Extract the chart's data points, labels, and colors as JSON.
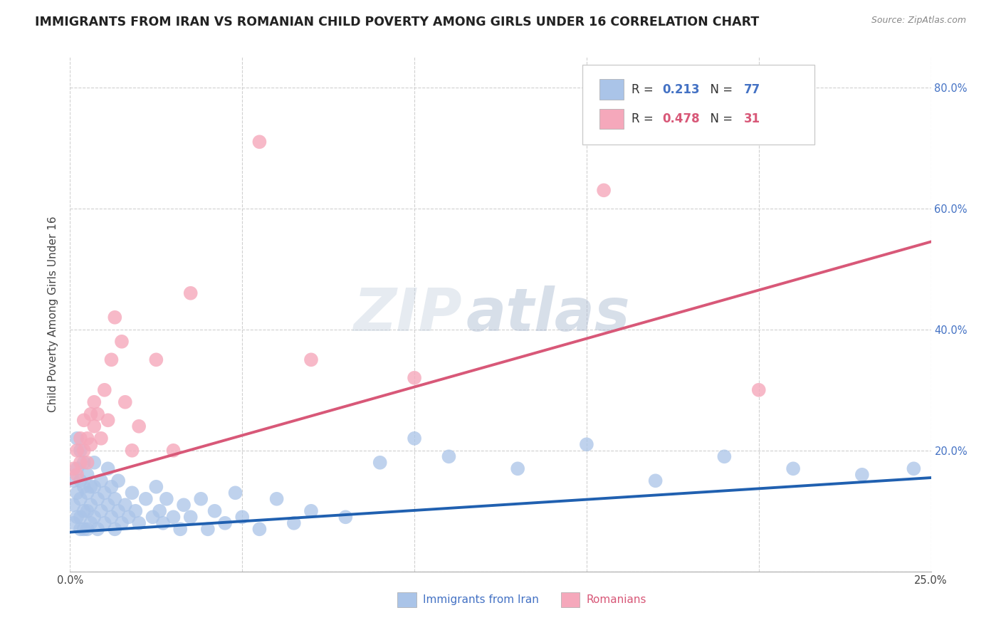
{
  "title": "IMMIGRANTS FROM IRAN VS ROMANIAN CHILD POVERTY AMONG GIRLS UNDER 16 CORRELATION CHART",
  "source": "Source: ZipAtlas.com",
  "xlabel_blue": "Immigrants from Iran",
  "xlabel_pink": "Romanians",
  "ylabel": "Child Poverty Among Girls Under 16",
  "xlim": [
    0.0,
    0.25
  ],
  "ylim": [
    0.0,
    0.85
  ],
  "legend_blue_r": "0.213",
  "legend_blue_n": "77",
  "legend_pink_r": "0.478",
  "legend_pink_n": "31",
  "blue_color": "#aac4e8",
  "pink_color": "#f5a8bb",
  "blue_line_color": "#2060b0",
  "pink_line_color": "#d85878",
  "watermark_zip": "ZIP",
  "watermark_atlas": "atlas",
  "blue_scatter_x": [
    0.001,
    0.001,
    0.001,
    0.002,
    0.002,
    0.002,
    0.002,
    0.003,
    0.003,
    0.003,
    0.003,
    0.003,
    0.004,
    0.004,
    0.004,
    0.004,
    0.005,
    0.005,
    0.005,
    0.005,
    0.006,
    0.006,
    0.006,
    0.007,
    0.007,
    0.007,
    0.008,
    0.008,
    0.009,
    0.009,
    0.01,
    0.01,
    0.011,
    0.011,
    0.012,
    0.012,
    0.013,
    0.013,
    0.014,
    0.014,
    0.015,
    0.016,
    0.017,
    0.018,
    0.019,
    0.02,
    0.022,
    0.024,
    0.025,
    0.026,
    0.027,
    0.028,
    0.03,
    0.032,
    0.033,
    0.035,
    0.038,
    0.04,
    0.042,
    0.045,
    0.048,
    0.05,
    0.055,
    0.06,
    0.065,
    0.07,
    0.08,
    0.09,
    0.1,
    0.11,
    0.13,
    0.15,
    0.17,
    0.19,
    0.21,
    0.23,
    0.245
  ],
  "blue_scatter_y": [
    0.15,
    0.11,
    0.08,
    0.22,
    0.17,
    0.13,
    0.09,
    0.2,
    0.15,
    0.12,
    0.09,
    0.07,
    0.18,
    0.14,
    0.1,
    0.07,
    0.16,
    0.13,
    0.1,
    0.07,
    0.14,
    0.11,
    0.08,
    0.18,
    0.14,
    0.09,
    0.12,
    0.07,
    0.15,
    0.1,
    0.13,
    0.08,
    0.17,
    0.11,
    0.14,
    0.09,
    0.12,
    0.07,
    0.15,
    0.1,
    0.08,
    0.11,
    0.09,
    0.13,
    0.1,
    0.08,
    0.12,
    0.09,
    0.14,
    0.1,
    0.08,
    0.12,
    0.09,
    0.07,
    0.11,
    0.09,
    0.12,
    0.07,
    0.1,
    0.08,
    0.13,
    0.09,
    0.07,
    0.12,
    0.08,
    0.1,
    0.09,
    0.18,
    0.22,
    0.19,
    0.17,
    0.21,
    0.15,
    0.19,
    0.17,
    0.16,
    0.17
  ],
  "pink_scatter_x": [
    0.001,
    0.002,
    0.002,
    0.003,
    0.003,
    0.004,
    0.004,
    0.005,
    0.005,
    0.006,
    0.006,
    0.007,
    0.007,
    0.008,
    0.009,
    0.01,
    0.011,
    0.012,
    0.013,
    0.015,
    0.016,
    0.018,
    0.02,
    0.025,
    0.03,
    0.035,
    0.055,
    0.07,
    0.1,
    0.155,
    0.2
  ],
  "pink_scatter_y": [
    0.17,
    0.2,
    0.16,
    0.22,
    0.18,
    0.25,
    0.2,
    0.22,
    0.18,
    0.26,
    0.21,
    0.28,
    0.24,
    0.26,
    0.22,
    0.3,
    0.25,
    0.35,
    0.42,
    0.38,
    0.28,
    0.2,
    0.24,
    0.35,
    0.2,
    0.46,
    0.71,
    0.35,
    0.32,
    0.63,
    0.3
  ],
  "blue_trend_x": [
    0.0,
    0.25
  ],
  "blue_trend_y": [
    0.065,
    0.155
  ],
  "pink_trend_x": [
    0.0,
    0.25
  ],
  "pink_trend_y": [
    0.145,
    0.545
  ],
  "background_color": "#ffffff",
  "grid_color": "#d0d0d0",
  "title_fontsize": 12.5,
  "axis_label_fontsize": 11,
  "tick_fontsize": 10.5
}
